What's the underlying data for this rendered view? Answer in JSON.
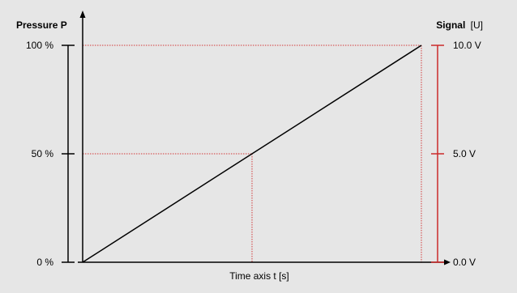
{
  "colors": {
    "background": "#e6e6e6",
    "axis": "#000000",
    "signal_axis": "#cc2a2a",
    "guide": "#d33a3a",
    "line": "#000000"
  },
  "chart_data": {
    "type": "line",
    "left_axis": {
      "title_bold": "Pressure P",
      "ticks": [
        {
          "label": "100 %",
          "value": 100
        },
        {
          "label": "50 %",
          "value": 50
        },
        {
          "label": "0 %",
          "value": 0
        }
      ],
      "range": [
        0,
        100
      ]
    },
    "right_axis": {
      "title_bold": "Signal",
      "title_unit": "[U]",
      "ticks": [
        {
          "label": "10.0 V",
          "value": 10
        },
        {
          "label": "5.0 V",
          "value": 5
        },
        {
          "label": "0.0 V",
          "value": 0
        }
      ],
      "range": [
        0,
        10
      ]
    },
    "x_axis": {
      "label": "Time axis t [s]",
      "range": [
        0,
        100
      ]
    },
    "series": [
      {
        "x": [
          0,
          100
        ],
        "y": [
          0,
          100
        ]
      }
    ],
    "guides": [
      {
        "x": 50,
        "y": 50
      },
      {
        "x": 100,
        "y": 100
      }
    ],
    "grid": false
  }
}
